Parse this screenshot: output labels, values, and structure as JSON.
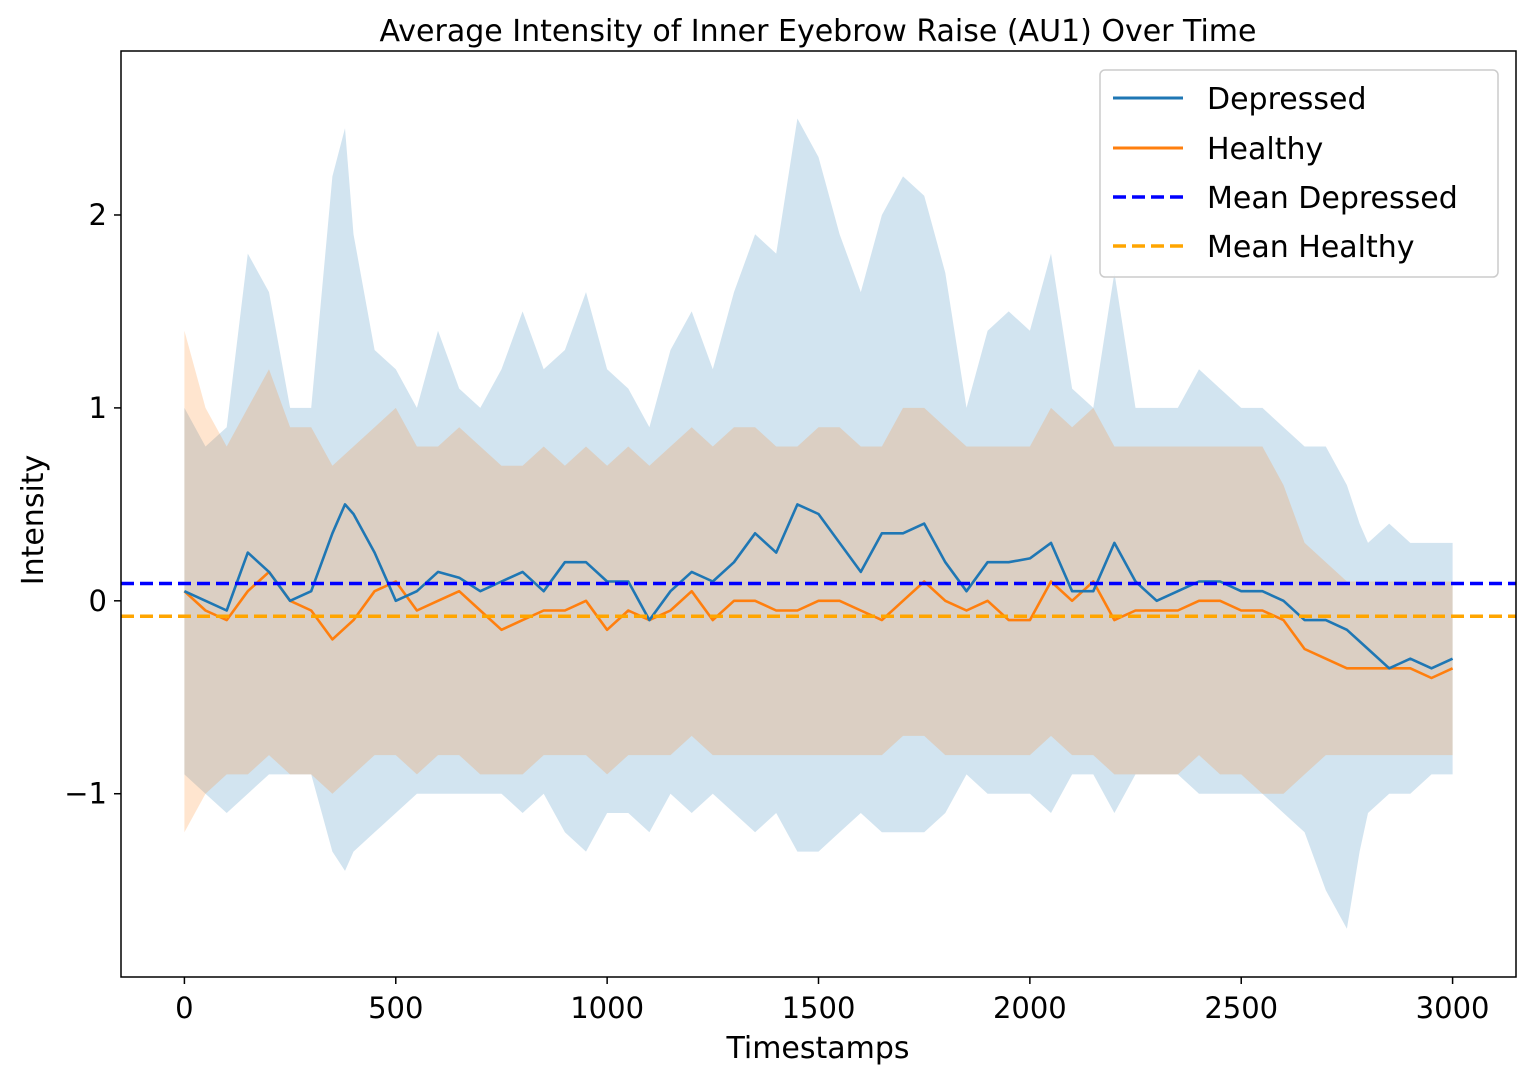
{
  "chart_data": {
    "type": "line",
    "title": "Average Intensity of Inner Eyebrow Raise (AU1) Over Time",
    "xlabel": "Timestamps",
    "ylabel": "Intensity",
    "xlim": [
      -150,
      3150
    ],
    "ylim": [
      -1.95,
      2.85
    ],
    "xticks": [
      0,
      500,
      1000,
      1500,
      2000,
      2500,
      3000
    ],
    "xtick_labels": [
      "0",
      "500",
      "1000",
      "1500",
      "2000",
      "2500",
      "3000"
    ],
    "yticks": [
      -1,
      0,
      1,
      2
    ],
    "ytick_labels": [
      "−1",
      "0",
      "1",
      "2"
    ],
    "grid": false,
    "legend_position": "top-right",
    "colors": {
      "depressed": "#1f77b4",
      "healthy": "#ff7f0e",
      "mean_depressed": "#0000ff",
      "mean_healthy": "#ffa500",
      "depressed_band": "#1f77b4",
      "healthy_band": "#ff7f0e"
    },
    "series": [
      {
        "name": "Depressed",
        "style": "solid",
        "x": [
          0,
          50,
          100,
          150,
          200,
          250,
          300,
          350,
          380,
          400,
          450,
          500,
          550,
          600,
          650,
          700,
          750,
          800,
          850,
          900,
          950,
          1000,
          1050,
          1100,
          1150,
          1200,
          1250,
          1300,
          1350,
          1400,
          1450,
          1500,
          1550,
          1600,
          1650,
          1700,
          1750,
          1800,
          1850,
          1900,
          1950,
          2000,
          2050,
          2100,
          2150,
          2200,
          2250,
          2300,
          2350,
          2400,
          2450,
          2500,
          2550,
          2600,
          2650,
          2700,
          2750,
          2800,
          2850,
          2900,
          2950,
          3000
        ],
        "y": [
          0.05,
          0.0,
          -0.05,
          0.25,
          0.15,
          0.0,
          0.05,
          0.35,
          0.5,
          0.45,
          0.25,
          0.0,
          0.05,
          0.15,
          0.12,
          0.05,
          0.1,
          0.15,
          0.05,
          0.2,
          0.2,
          0.1,
          0.1,
          -0.1,
          0.05,
          0.15,
          0.1,
          0.2,
          0.35,
          0.25,
          0.5,
          0.45,
          0.3,
          0.15,
          0.35,
          0.35,
          0.4,
          0.2,
          0.05,
          0.2,
          0.2,
          0.22,
          0.3,
          0.05,
          0.05,
          0.3,
          0.1,
          0.0,
          0.05,
          0.1,
          0.1,
          0.05,
          0.05,
          0.0,
          -0.1,
          -0.1,
          -0.15,
          -0.25,
          -0.35,
          -0.3,
          -0.35,
          -0.3
        ]
      },
      {
        "name": "Healthy",
        "style": "solid",
        "x": [
          0,
          50,
          100,
          150,
          200,
          250,
          300,
          350,
          400,
          450,
          500,
          550,
          600,
          650,
          700,
          750,
          800,
          850,
          900,
          950,
          1000,
          1050,
          1100,
          1150,
          1200,
          1250,
          1300,
          1350,
          1400,
          1450,
          1500,
          1550,
          1600,
          1650,
          1700,
          1750,
          1800,
          1850,
          1900,
          1950,
          2000,
          2050,
          2100,
          2150,
          2200,
          2250,
          2300,
          2350,
          2400,
          2450,
          2500,
          2550,
          2600,
          2650,
          2700,
          2750,
          2800,
          2850,
          2900,
          2950,
          3000
        ],
        "y": [
          0.05,
          -0.05,
          -0.1,
          0.05,
          0.15,
          0.0,
          -0.05,
          -0.2,
          -0.1,
          0.05,
          0.1,
          -0.05,
          0.0,
          0.05,
          -0.05,
          -0.15,
          -0.1,
          -0.05,
          -0.05,
          0.0,
          -0.15,
          -0.05,
          -0.1,
          -0.05,
          0.05,
          -0.1,
          0.0,
          0.0,
          -0.05,
          -0.05,
          0.0,
          0.0,
          -0.05,
          -0.1,
          0.0,
          0.1,
          0.0,
          -0.05,
          0.0,
          -0.1,
          -0.1,
          0.1,
          0.0,
          0.1,
          -0.1,
          -0.05,
          -0.05,
          -0.05,
          0.0,
          0.0,
          -0.05,
          -0.05,
          -0.1,
          -0.25,
          -0.3,
          -0.35,
          -0.35,
          -0.35,
          -0.35,
          -0.4,
          -0.35
        ]
      },
      {
        "name": "Mean Depressed",
        "style": "dashed",
        "value": 0.09
      },
      {
        "name": "Mean Healthy",
        "style": "dashed",
        "value": -0.08
      }
    ],
    "bands": [
      {
        "name": "Depressed std",
        "x": [
          0,
          50,
          100,
          150,
          200,
          250,
          300,
          350,
          380,
          400,
          450,
          500,
          550,
          600,
          650,
          700,
          750,
          800,
          850,
          900,
          950,
          1000,
          1050,
          1100,
          1150,
          1200,
          1250,
          1300,
          1350,
          1400,
          1450,
          1500,
          1550,
          1600,
          1650,
          1700,
          1750,
          1800,
          1850,
          1900,
          1950,
          2000,
          2050,
          2100,
          2150,
          2200,
          2250,
          2300,
          2350,
          2400,
          2450,
          2500,
          2550,
          2600,
          2650,
          2700,
          2750,
          2780,
          2800,
          2850,
          2900,
          2950,
          3000
        ],
        "upper": [
          1.0,
          0.8,
          0.9,
          1.8,
          1.6,
          1.0,
          1.0,
          2.2,
          2.45,
          1.9,
          1.3,
          1.2,
          1.0,
          1.4,
          1.1,
          1.0,
          1.2,
          1.5,
          1.2,
          1.3,
          1.6,
          1.2,
          1.1,
          0.9,
          1.3,
          1.5,
          1.2,
          1.6,
          1.9,
          1.8,
          2.5,
          2.3,
          1.9,
          1.6,
          2.0,
          2.2,
          2.1,
          1.7,
          1.0,
          1.4,
          1.5,
          1.4,
          1.8,
          1.1,
          1.0,
          1.7,
          1.0,
          1.0,
          1.0,
          1.2,
          1.1,
          1.0,
          1.0,
          0.9,
          0.8,
          0.8,
          0.6,
          0.4,
          0.3,
          0.4,
          0.3,
          0.3,
          0.3
        ],
        "lower": [
          -0.9,
          -1.0,
          -1.1,
          -1.0,
          -0.9,
          -0.9,
          -0.9,
          -1.3,
          -1.4,
          -1.3,
          -1.2,
          -1.1,
          -1.0,
          -1.0,
          -1.0,
          -1.0,
          -1.0,
          -1.1,
          -1.0,
          -1.2,
          -1.3,
          -1.1,
          -1.1,
          -1.2,
          -1.0,
          -1.1,
          -1.0,
          -1.1,
          -1.2,
          -1.1,
          -1.3,
          -1.3,
          -1.2,
          -1.1,
          -1.2,
          -1.2,
          -1.2,
          -1.1,
          -0.9,
          -1.0,
          -1.0,
          -1.0,
          -1.1,
          -0.9,
          -0.9,
          -1.1,
          -0.9,
          -0.9,
          -0.9,
          -1.0,
          -1.0,
          -1.0,
          -1.0,
          -1.1,
          -1.2,
          -1.5,
          -1.7,
          -1.3,
          -1.1,
          -1.0,
          -1.0,
          -0.9,
          -0.9
        ]
      },
      {
        "name": "Healthy std",
        "x": [
          0,
          50,
          100,
          150,
          200,
          250,
          300,
          350,
          400,
          450,
          500,
          550,
          600,
          650,
          700,
          750,
          800,
          850,
          900,
          950,
          1000,
          1050,
          1100,
          1150,
          1200,
          1250,
          1300,
          1350,
          1400,
          1450,
          1500,
          1550,
          1600,
          1650,
          1700,
          1750,
          1800,
          1850,
          1900,
          1950,
          2000,
          2050,
          2100,
          2150,
          2200,
          2250,
          2300,
          2350,
          2400,
          2450,
          2500,
          2550,
          2600,
          2650,
          2700,
          2750,
          2800,
          2850,
          2900,
          2950,
          3000
        ],
        "upper": [
          1.4,
          1.0,
          0.8,
          1.0,
          1.2,
          0.9,
          0.9,
          0.7,
          0.8,
          0.9,
          1.0,
          0.8,
          0.8,
          0.9,
          0.8,
          0.7,
          0.7,
          0.8,
          0.7,
          0.8,
          0.7,
          0.8,
          0.7,
          0.8,
          0.9,
          0.8,
          0.9,
          0.9,
          0.8,
          0.8,
          0.9,
          0.9,
          0.8,
          0.8,
          1.0,
          1.0,
          0.9,
          0.8,
          0.8,
          0.8,
          0.8,
          1.0,
          0.9,
          1.0,
          0.8,
          0.8,
          0.8,
          0.8,
          0.8,
          0.8,
          0.8,
          0.8,
          0.6,
          0.3,
          0.2,
          0.1,
          0.1,
          0.1,
          0.1,
          0.1,
          0.1
        ],
        "lower": [
          -1.2,
          -1.0,
          -0.9,
          -0.9,
          -0.8,
          -0.9,
          -0.9,
          -1.0,
          -0.9,
          -0.8,
          -0.8,
          -0.9,
          -0.8,
          -0.8,
          -0.9,
          -0.9,
          -0.9,
          -0.8,
          -0.8,
          -0.8,
          -0.9,
          -0.8,
          -0.8,
          -0.8,
          -0.7,
          -0.8,
          -0.8,
          -0.8,
          -0.8,
          -0.8,
          -0.8,
          -0.8,
          -0.8,
          -0.8,
          -0.7,
          -0.7,
          -0.8,
          -0.8,
          -0.8,
          -0.8,
          -0.8,
          -0.7,
          -0.8,
          -0.8,
          -0.9,
          -0.9,
          -0.9,
          -0.9,
          -0.8,
          -0.9,
          -0.9,
          -1.0,
          -1.0,
          -0.9,
          -0.8,
          -0.8,
          -0.8,
          -0.8,
          -0.8,
          -0.8,
          -0.8
        ]
      }
    ]
  }
}
